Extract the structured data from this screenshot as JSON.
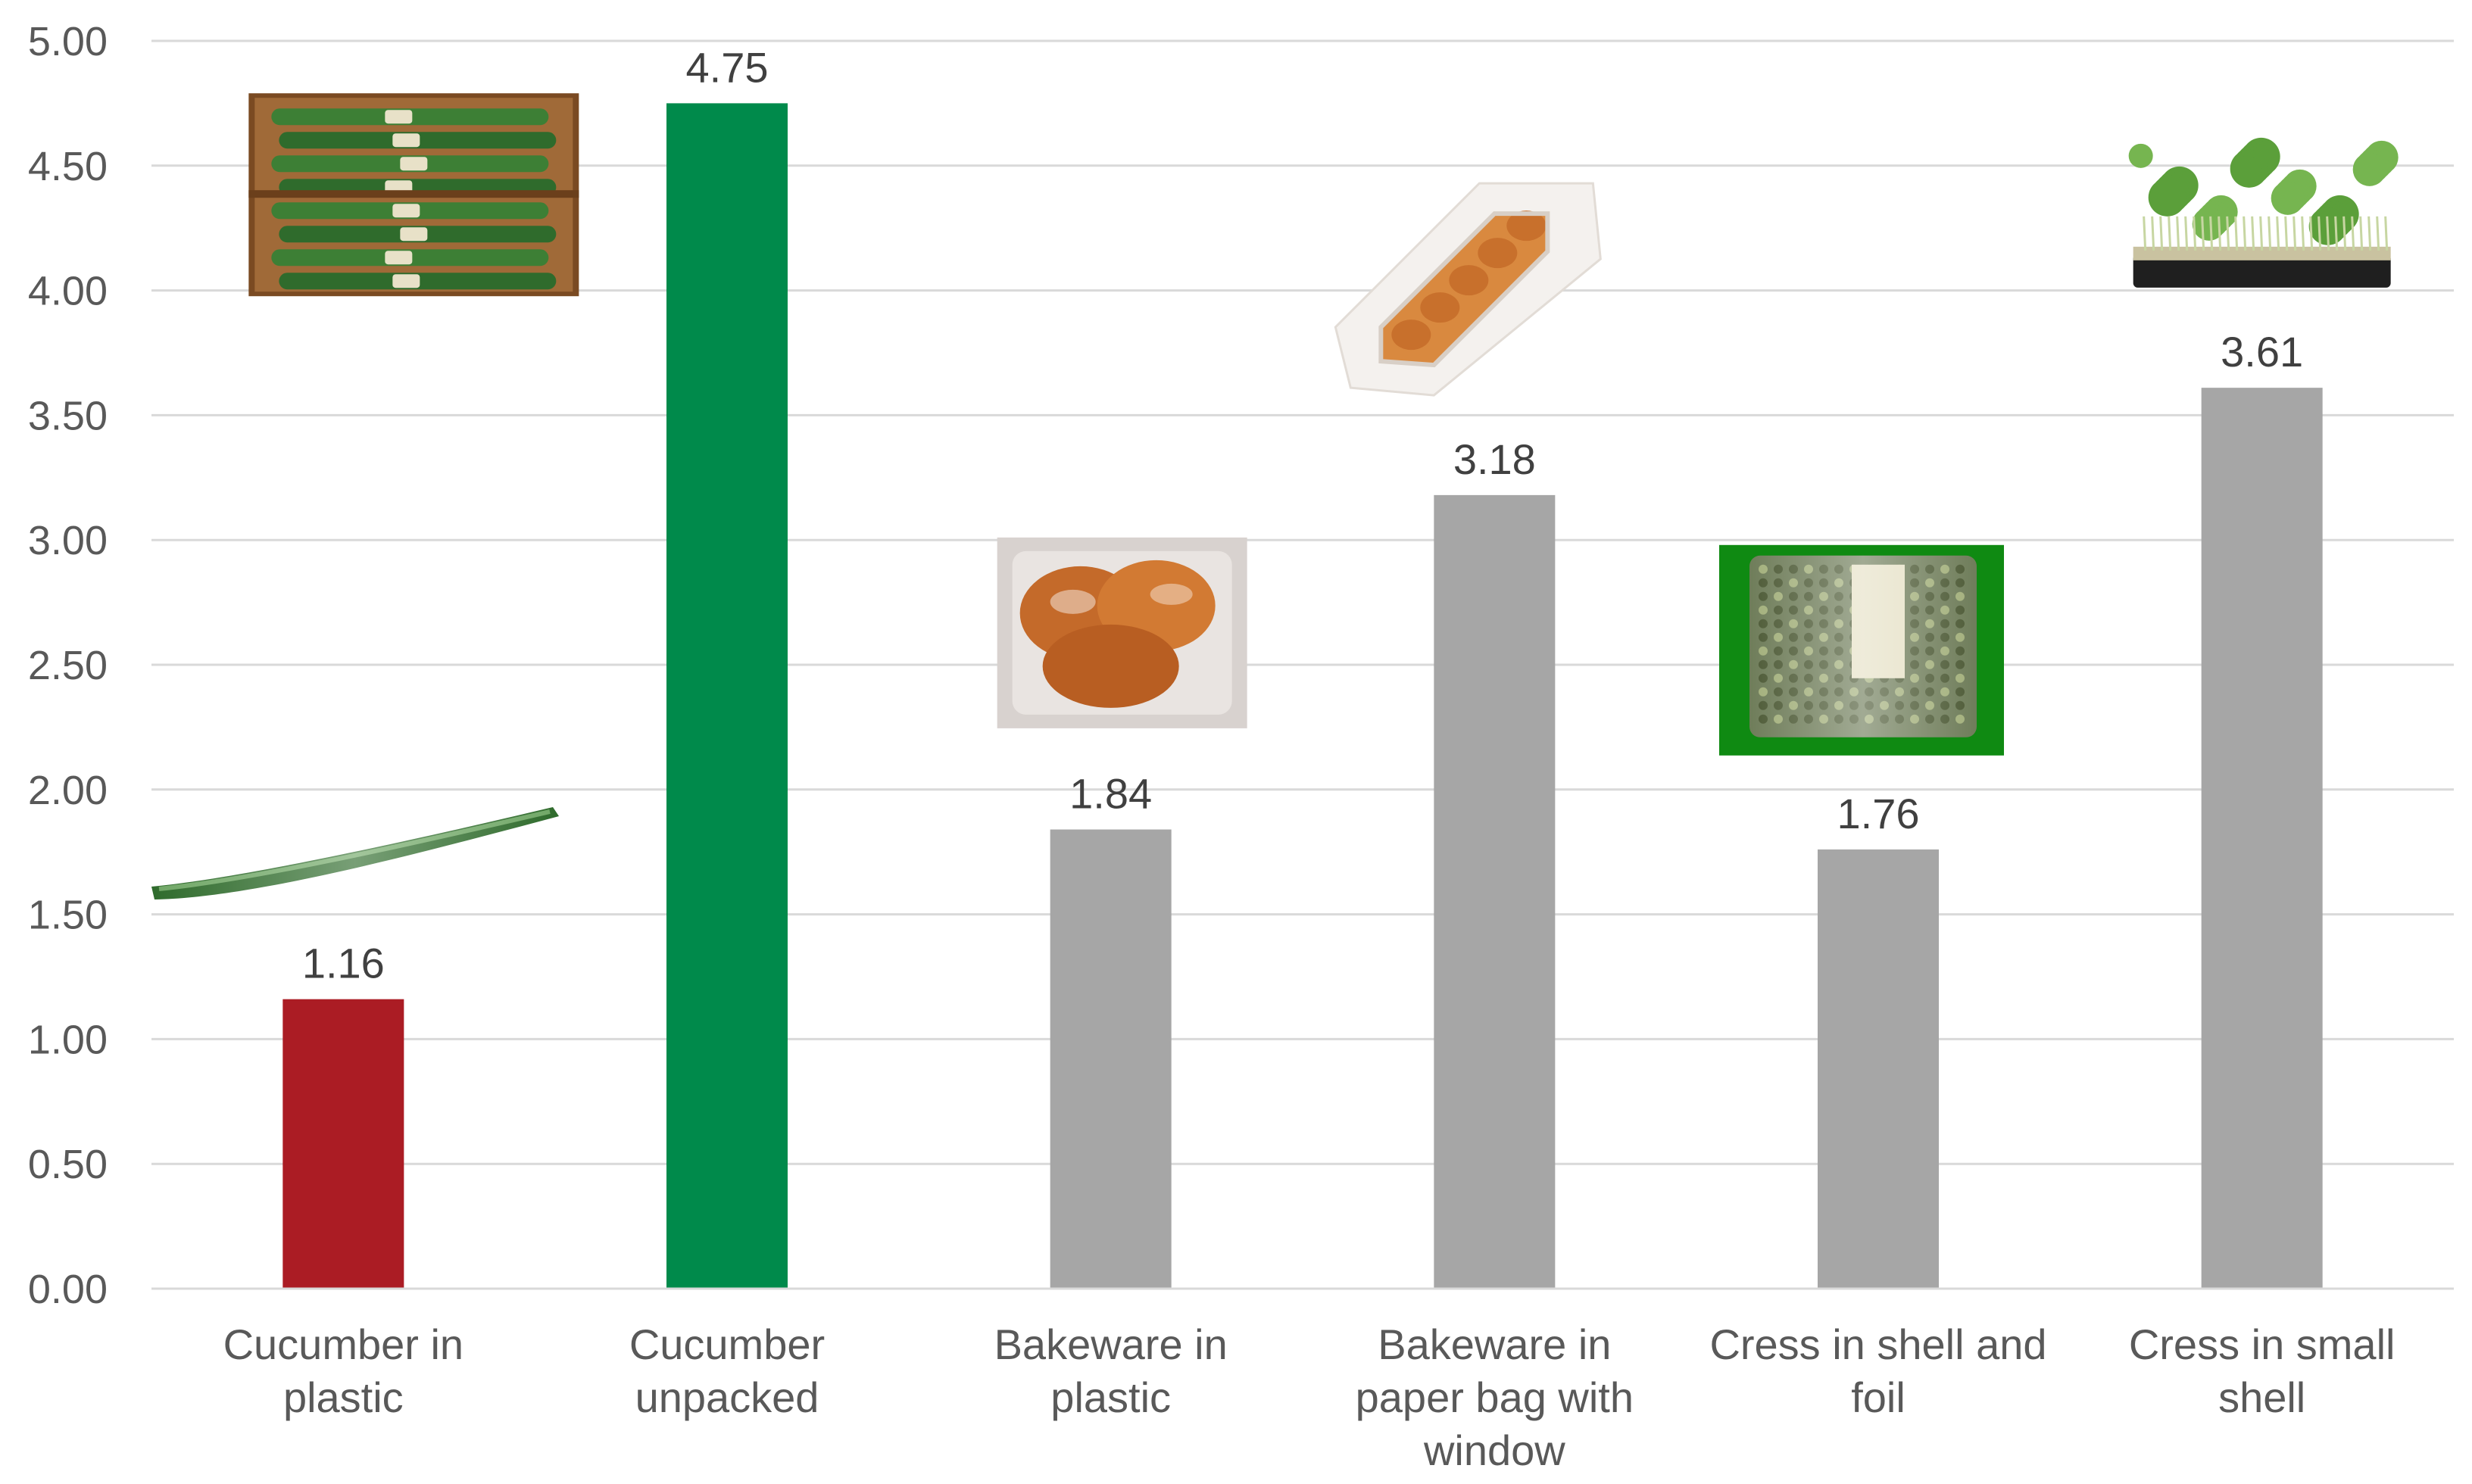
{
  "chart_data": {
    "type": "bar",
    "title": "",
    "xlabel": "",
    "ylabel": "",
    "ylim": [
      0,
      5
    ],
    "ytick_step": 0.5,
    "ytick_decimals": 2,
    "grid": true,
    "legend": "none",
    "categories": [
      "Cucumber in plastic",
      "Cucumber unpacked",
      "Bakeware in plastic",
      "Bakeware in paper bag with window",
      "Cress in shell and foil",
      "Cress in small shell"
    ],
    "category_lines": [
      [
        "Cucumber in",
        "plastic"
      ],
      [
        "Cucumber",
        "unpacked"
      ],
      [
        "Bakeware in",
        "plastic"
      ],
      [
        "Bakeware in",
        "paper bag with",
        "window"
      ],
      [
        "Cress in shell and",
        "foil"
      ],
      [
        "Cress in small",
        "shell"
      ]
    ],
    "values": [
      1.16,
      4.75,
      1.84,
      3.18,
      1.76,
      3.61
    ],
    "data_labels": [
      "1.16",
      "4.75",
      "1.84",
      "3.18",
      "1.76",
      "3.61"
    ],
    "bar_colors": [
      "#ab1c24",
      "#008a4b",
      "#a6a6a6",
      "#a6a6a6",
      "#a6a6a6",
      "#a6a6a6"
    ],
    "product_photos": [
      "cucumber-crate",
      "cucumber-wrapped",
      "bread-in-plastic",
      "bread-in-paper-bag",
      "cress-in-shell-foil",
      "cress-small-shell"
    ]
  },
  "colors": {
    "gridline": "#d9d9d9",
    "text": "#595959",
    "value_text": "#404040"
  }
}
